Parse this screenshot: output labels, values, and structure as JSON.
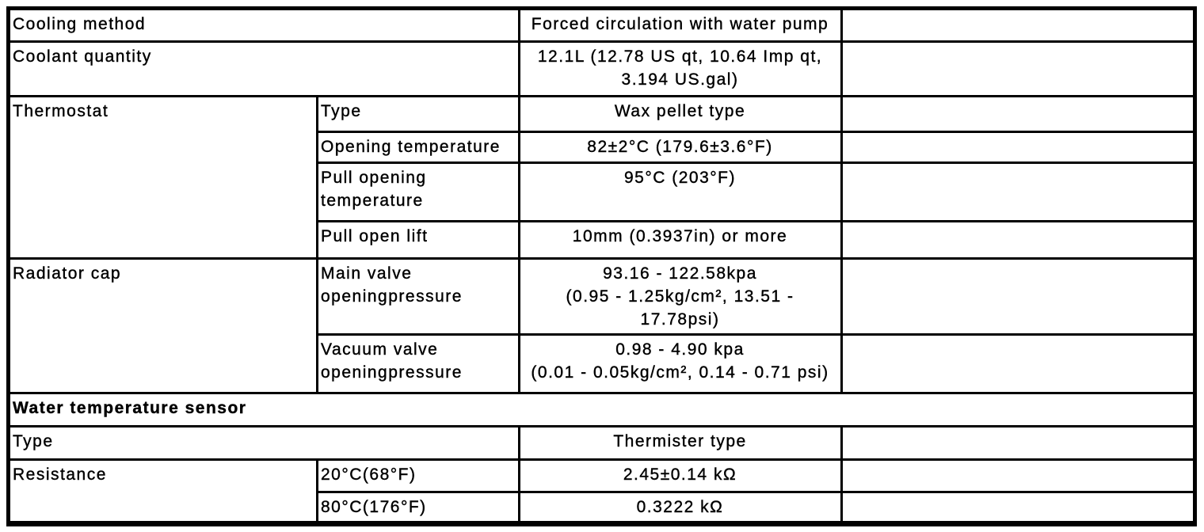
{
  "table": {
    "cooling_method": {
      "label": "Cooling method",
      "value": "Forced circulation with water pump"
    },
    "coolant_quantity": {
      "label": "Coolant quantity",
      "value": "12.1L (12.78 US qt, 10.64 Imp qt,\n3.194 US.gal)"
    },
    "thermostat": {
      "label": "Thermostat",
      "rows": [
        {
          "label": "Type",
          "value": "Wax pellet type"
        },
        {
          "label": "Opening temperature",
          "value": "82±2°C (179.6±3.6°F)"
        },
        {
          "label": "Pull opening\ntemperature",
          "value": "95°C (203°F)"
        },
        {
          "label": "Pull open lift",
          "value": "10mm (0.3937in) or more"
        }
      ]
    },
    "radiator_cap": {
      "label": "Radiator cap",
      "rows": [
        {
          "label": "Main valve\nopeningpressure",
          "value": "93.16 - 122.58kpa\n(0.95 - 1.25kg/cm², 13.51 -\n17.78psi)"
        },
        {
          "label": "Vacuum valve\nopeningpressure",
          "value": "0.98 - 4.90 kpa\n(0.01 - 0.05kg/cm², 0.14 - 0.71 psi)"
        }
      ]
    },
    "section_header": "Water temperature sensor",
    "sensor_type": {
      "label": "Type",
      "value": "Thermister type"
    },
    "resistance": {
      "label": "Resistance",
      "rows": [
        {
          "label": "20°C(68°F)",
          "value": "2.45±0.14 kΩ"
        },
        {
          "label": "80°C(176°F)",
          "value": "0.3222 kΩ"
        }
      ]
    },
    "colors": {
      "border": "#000000",
      "background": "#ffffff",
      "text": "#000000"
    }
  }
}
